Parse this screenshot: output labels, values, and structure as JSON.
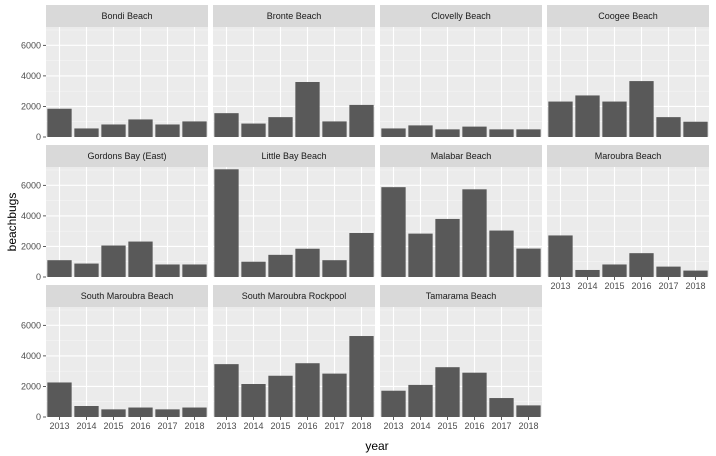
{
  "chart_data": {
    "type": "bar",
    "xlabel": "year",
    "ylabel": "beachbugs",
    "ylim": [
      0,
      7200
    ],
    "yticks": [
      0,
      2000,
      4000,
      6000
    ],
    "ytick_labels": [
      "0",
      "2000",
      "4000",
      "6000"
    ],
    "categories": [
      "2013",
      "2014",
      "2015",
      "2016",
      "2017",
      "2018"
    ],
    "grid": true,
    "colors": {
      "bar": "#595959",
      "panel": "#ebebeb",
      "strip": "#d9d9d9",
      "grid_major": "#ffffff"
    },
    "panels": [
      {
        "name": "Bondi Beach",
        "values": [
          1850,
          560,
          820,
          1150,
          820,
          1020
        ]
      },
      {
        "name": "Bronte Beach",
        "values": [
          1560,
          880,
          1300,
          3600,
          1020,
          2100
        ]
      },
      {
        "name": "Clovelly Beach",
        "values": [
          560,
          760,
          500,
          680,
          500,
          500
        ]
      },
      {
        "name": "Coogee Beach",
        "values": [
          2320,
          2720,
          2320,
          3660,
          1300,
          1000
        ]
      },
      {
        "name": "Gordons Bay (East)",
        "values": [
          1100,
          880,
          2060,
          2320,
          820,
          820
        ]
      },
      {
        "name": "Little Bay Beach",
        "values": [
          7050,
          1000,
          1450,
          1850,
          1100,
          2880
        ]
      },
      {
        "name": "Malabar Beach",
        "values": [
          5880,
          2840,
          3800,
          5740,
          3040,
          1860
        ]
      },
      {
        "name": "Maroubra Beach",
        "values": [
          2720,
          460,
          820,
          1560,
          680,
          420
        ]
      },
      {
        "name": "South Maroubra Beach",
        "values": [
          2260,
          720,
          500,
          620,
          500,
          620
        ]
      },
      {
        "name": "South Maroubra Rockpool",
        "values": [
          3460,
          2160,
          2700,
          3520,
          2840,
          5300
        ]
      },
      {
        "name": "Tamarama Beach",
        "values": [
          1720,
          2100,
          3260,
          2900,
          1240,
          760
        ]
      }
    ]
  }
}
